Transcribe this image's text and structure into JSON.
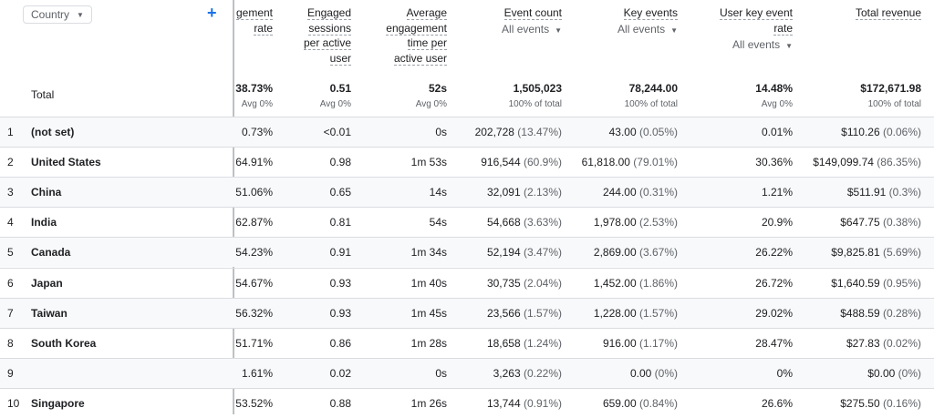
{
  "dimension": {
    "label": "Country"
  },
  "columns": [
    {
      "title_lines": [
        "gement",
        "rate"
      ],
      "sub": ""
    },
    {
      "title_lines": [
        "Engaged",
        "sessions",
        "per active",
        "user"
      ],
      "sub": ""
    },
    {
      "title_lines": [
        "Average",
        "engagement",
        "time per",
        "active user"
      ],
      "sub": ""
    },
    {
      "title_lines": [
        "Event count"
      ],
      "sub": "All events"
    },
    {
      "title_lines": [
        "Key events"
      ],
      "sub": "All events"
    },
    {
      "title_lines": [
        "User key event",
        "rate"
      ],
      "sub": "All events"
    },
    {
      "title_lines": [
        "Total revenue"
      ],
      "sub": ""
    }
  ],
  "total": {
    "label": "Total",
    "values": [
      {
        "v": "38.73%",
        "s": "Avg 0%"
      },
      {
        "v": "0.51",
        "s": "Avg 0%"
      },
      {
        "v": "52s",
        "s": "Avg 0%"
      },
      {
        "v": "1,505,023",
        "s": "100% of total"
      },
      {
        "v": "78,244.00",
        "s": "100% of total"
      },
      {
        "v": "14.48%",
        "s": "Avg 0%"
      },
      {
        "v": "$172,671.98",
        "s": "100% of total"
      }
    ]
  },
  "rows": [
    {
      "index": "1",
      "name": "(not set)",
      "cells": [
        [
          "0.73%",
          ""
        ],
        [
          "<0.01",
          ""
        ],
        [
          "0s",
          ""
        ],
        [
          "202,728",
          "(13.47%)"
        ],
        [
          "43.00",
          "(0.05%)"
        ],
        [
          "0.01%",
          ""
        ],
        [
          "$110.26",
          "(0.06%)"
        ]
      ]
    },
    {
      "index": "2",
      "name": "United States",
      "cells": [
        [
          "64.91%",
          ""
        ],
        [
          "0.98",
          ""
        ],
        [
          "1m 53s",
          ""
        ],
        [
          "916,544",
          "(60.9%)"
        ],
        [
          "61,818.00",
          "(79.01%)"
        ],
        [
          "30.36%",
          ""
        ],
        [
          "$149,099.74",
          "(86.35%)"
        ]
      ]
    },
    {
      "index": "3",
      "name": "China",
      "cells": [
        [
          "51.06%",
          ""
        ],
        [
          "0.65",
          ""
        ],
        [
          "14s",
          ""
        ],
        [
          "32,091",
          "(2.13%)"
        ],
        [
          "244.00",
          "(0.31%)"
        ],
        [
          "1.21%",
          ""
        ],
        [
          "$511.91",
          "(0.3%)"
        ]
      ]
    },
    {
      "index": "4",
      "name": "India",
      "cells": [
        [
          "62.87%",
          ""
        ],
        [
          "0.81",
          ""
        ],
        [
          "54s",
          ""
        ],
        [
          "54,668",
          "(3.63%)"
        ],
        [
          "1,978.00",
          "(2.53%)"
        ],
        [
          "20.9%",
          ""
        ],
        [
          "$647.75",
          "(0.38%)"
        ]
      ]
    },
    {
      "index": "5",
      "name": "Canada",
      "cells": [
        [
          "54.23%",
          ""
        ],
        [
          "0.91",
          ""
        ],
        [
          "1m 34s",
          ""
        ],
        [
          "52,194",
          "(3.47%)"
        ],
        [
          "2,869.00",
          "(3.67%)"
        ],
        [
          "26.22%",
          ""
        ],
        [
          "$9,825.81",
          "(5.69%)"
        ]
      ]
    },
    {
      "index": "6",
      "name": "Japan",
      "cells": [
        [
          "54.67%",
          ""
        ],
        [
          "0.93",
          ""
        ],
        [
          "1m 40s",
          ""
        ],
        [
          "30,735",
          "(2.04%)"
        ],
        [
          "1,452.00",
          "(1.86%)"
        ],
        [
          "26.72%",
          ""
        ],
        [
          "$1,640.59",
          "(0.95%)"
        ]
      ]
    },
    {
      "index": "7",
      "name": "Taiwan",
      "cells": [
        [
          "56.32%",
          ""
        ],
        [
          "0.93",
          ""
        ],
        [
          "1m 45s",
          ""
        ],
        [
          "23,566",
          "(1.57%)"
        ],
        [
          "1,228.00",
          "(1.57%)"
        ],
        [
          "29.02%",
          ""
        ],
        [
          "$488.59",
          "(0.28%)"
        ]
      ]
    },
    {
      "index": "8",
      "name": "South Korea",
      "cells": [
        [
          "51.71%",
          ""
        ],
        [
          "0.86",
          ""
        ],
        [
          "1m 28s",
          ""
        ],
        [
          "18,658",
          "(1.24%)"
        ],
        [
          "916.00",
          "(1.17%)"
        ],
        [
          "28.47%",
          ""
        ],
        [
          "$27.83",
          "(0.02%)"
        ]
      ]
    },
    {
      "index": "9",
      "name": "",
      "cells": [
        [
          "1.61%",
          ""
        ],
        [
          "0.02",
          ""
        ],
        [
          "0s",
          ""
        ],
        [
          "3,263",
          "(0.22%)"
        ],
        [
          "0.00",
          "(0%)"
        ],
        [
          "0%",
          ""
        ],
        [
          "$0.00",
          "(0%)"
        ]
      ]
    },
    {
      "index": "10",
      "name": "Singapore",
      "cells": [
        [
          "53.52%",
          ""
        ],
        [
          "0.88",
          ""
        ],
        [
          "1m 26s",
          ""
        ],
        [
          "13,744",
          "(0.91%)"
        ],
        [
          "659.00",
          "(0.84%)"
        ],
        [
          "26.6%",
          ""
        ],
        [
          "$275.50",
          "(0.16%)"
        ]
      ]
    }
  ]
}
